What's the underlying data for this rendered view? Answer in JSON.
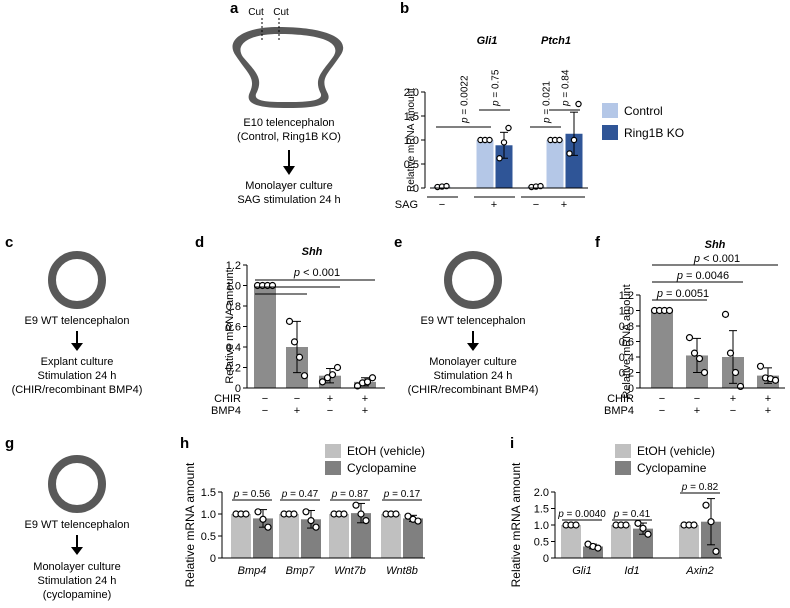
{
  "colors": {
    "control": "#b4c7e7",
    "ring1b": "#2f5597",
    "etoh": "#c0c0c0",
    "cyclo": "#808080",
    "gray": "#8c8c8c",
    "tissue": "#595959"
  },
  "panels": {
    "a": {
      "letter": "a",
      "cut1": "Cut",
      "cut2": "Cut",
      "line1": "E10 telencephalon",
      "line2": "(Control, Ring1B KO)",
      "line3": "Monolayer culture",
      "line4": "SAG stimulation 24 h"
    },
    "c": {
      "letter": "c",
      "line1": "E9 WT telencephalon",
      "line2": "Explant culture",
      "line3": "Stimulation 24 h",
      "line4": "(CHIR/recombinant BMP4)"
    },
    "e": {
      "letter": "e",
      "line1": "E9 WT telencephalon",
      "line2": "Monolayer culture",
      "line3": "Stimulation 24 h",
      "line4": "(CHIR/recombinant BMP4)"
    },
    "g": {
      "letter": "g",
      "line1": "E9 WT telencephalon",
      "line2": "Monolayer culture",
      "line3": "Stimulation 24 h",
      "line4": "(cyclopamine)"
    }
  },
  "chart_data": [
    {
      "id": "b",
      "letter": "b",
      "type": "bar",
      "ylabel": "Relative mRNA amount",
      "ylim": [
        0,
        2.0
      ],
      "yticks": [
        0,
        0.5,
        1.0,
        1.5,
        2.0
      ],
      "groups": [
        {
          "gene": "Gli1",
          "bars": [
            {
              "series": "Control",
              "sag": "−",
              "mean": 0.03,
              "sd": 0.02,
              "points": [
                0.02,
                0.03,
                0.04
              ]
            },
            {
              "series": "Control",
              "sag": "+",
              "mean": 1.0,
              "sd": 0,
              "points": [
                1.0,
                1.0,
                1.0
              ]
            },
            {
              "series": "Ring1B KO",
              "sag": "+",
              "mean": 0.89,
              "sd": 0.27,
              "points": [
                0.62,
                0.95,
                1.25
              ]
            }
          ],
          "pvalues": [
            {
              "text": "p = 0.0022"
            },
            {
              "text": "p = 0.75"
            }
          ]
        },
        {
          "gene": "Ptch1",
          "bars": [
            {
              "series": "Control",
              "sag": "−",
              "mean": 0.03,
              "sd": 0.02,
              "points": [
                0.02,
                0.03,
                0.04
              ]
            },
            {
              "series": "Control",
              "sag": "+",
              "mean": 1.0,
              "sd": 0,
              "points": [
                1.0,
                1.0,
                1.0
              ]
            },
            {
              "series": "Ring1B KO",
              "sag": "+",
              "mean": 1.13,
              "sd": 0.45,
              "points": [
                0.72,
                1.0,
                1.75
              ]
            }
          ],
          "pvalues": [
            {
              "text": "p = 0.021"
            },
            {
              "text": "p = 0.84"
            }
          ]
        }
      ],
      "legend": [
        "Control",
        "Ring1B KO"
      ],
      "row_label": "SAG",
      "row_values": [
        "−",
        "+",
        "−",
        "+"
      ]
    },
    {
      "id": "d",
      "letter": "d",
      "type": "bar",
      "title": "Shh",
      "ylabel": "Relative mRNA amount",
      "ylim": [
        0,
        1.2
      ],
      "yticks": [
        0,
        0.2,
        0.4,
        0.6,
        0.8,
        1.0,
        1.2
      ],
      "bars": [
        {
          "mean": 1.0,
          "sd": 0,
          "points": [
            1.0,
            1.0,
            1.0,
            1.0
          ]
        },
        {
          "mean": 0.4,
          "sd": 0.25,
          "points": [
            0.65,
            0.45,
            0.3,
            0.12
          ]
        },
        {
          "mean": 0.12,
          "sd": 0.07,
          "points": [
            0.06,
            0.1,
            0.13,
            0.2
          ]
        },
        {
          "mean": 0.06,
          "sd": 0.04,
          "points": [
            0.02,
            0.05,
            0.06,
            0.1
          ]
        }
      ],
      "pvalue": "p < 0.001",
      "rows": [
        {
          "label": "CHIR",
          "values": [
            "−",
            "−",
            "+",
            "+"
          ]
        },
        {
          "label": "BMP4",
          "values": [
            "−",
            "+",
            "−",
            "+"
          ]
        }
      ]
    },
    {
      "id": "f",
      "letter": "f",
      "type": "bar",
      "title": "Shh",
      "ylabel": "Relative mRNA amount",
      "ylim": [
        0,
        1.2
      ],
      "yticks": [
        0,
        0.2,
        0.4,
        0.6,
        0.8,
        1.0,
        1.2
      ],
      "bars": [
        {
          "mean": 1.0,
          "sd": 0,
          "points": [
            1.0,
            1.0,
            1.0,
            1.0
          ]
        },
        {
          "mean": 0.42,
          "sd": 0.22,
          "points": [
            0.65,
            0.45,
            0.38,
            0.2
          ]
        },
        {
          "mean": 0.4,
          "sd": 0.34,
          "points": [
            0.95,
            0.45,
            0.2,
            0.02
          ]
        },
        {
          "mean": 0.16,
          "sd": 0.1,
          "points": [
            0.28,
            0.13,
            0.12,
            0.1
          ]
        }
      ],
      "pvalues": [
        "p = 0.0051",
        "p = 0.0046",
        "p < 0.001"
      ],
      "rows": [
        {
          "label": "CHIR",
          "values": [
            "−",
            "−",
            "+",
            "+"
          ]
        },
        {
          "label": "BMP4",
          "values": [
            "−",
            "+",
            "−",
            "+"
          ]
        }
      ]
    },
    {
      "id": "h",
      "letter": "h",
      "type": "bar",
      "ylabel": "Relative mRNA amount",
      "ylim": [
        0,
        1.5
      ],
      "yticks": [
        0,
        0.5,
        1.0,
        1.5
      ],
      "legend": [
        "EtOH (vehicle)",
        "Cyclopamine"
      ],
      "groups": [
        {
          "gene": "Bmp4",
          "pvalue": "p = 0.56",
          "bars": [
            {
              "series": "EtOH (vehicle)",
              "mean": 1.0,
              "sd": 0,
              "points": [
                1.0,
                1.0,
                1.0
              ]
            },
            {
              "series": "Cyclopamine",
              "mean": 0.9,
              "sd": 0.2,
              "points": [
                1.05,
                0.88,
                0.7
              ]
            }
          ]
        },
        {
          "gene": "Bmp7",
          "pvalue": "p = 0.47",
          "bars": [
            {
              "series": "EtOH (vehicle)",
              "mean": 1.0,
              "sd": 0,
              "points": [
                1.0,
                1.0,
                1.0
              ]
            },
            {
              "series": "Cyclopamine",
              "mean": 0.88,
              "sd": 0.2,
              "points": [
                1.05,
                0.85,
                0.7
              ]
            }
          ]
        },
        {
          "gene": "Wnt7b",
          "pvalue": "p = 0.87",
          "bars": [
            {
              "series": "EtOH (vehicle)",
              "mean": 1.0,
              "sd": 0,
              "points": [
                1.0,
                1.0,
                1.0
              ]
            },
            {
              "series": "Cyclopamine",
              "mean": 1.02,
              "sd": 0.22,
              "points": [
                1.2,
                1.0,
                0.85
              ]
            }
          ]
        },
        {
          "gene": "Wnt8b",
          "pvalue": "p = 0.17",
          "bars": [
            {
              "series": "EtOH (vehicle)",
              "mean": 1.0,
              "sd": 0,
              "points": [
                1.0,
                1.0,
                1.0
              ]
            },
            {
              "series": "Cyclopamine",
              "mean": 0.9,
              "sd": 0.07,
              "points": [
                0.95,
                0.88,
                0.84
              ]
            }
          ]
        }
      ]
    },
    {
      "id": "i",
      "letter": "i",
      "type": "bar",
      "ylabel": "Relative mRNA amount",
      "ylim": [
        0,
        2.0
      ],
      "yticks": [
        0,
        0.5,
        1.0,
        1.5,
        2.0
      ],
      "legend": [
        "EtOH (vehicle)",
        "Cyclopamine"
      ],
      "groups": [
        {
          "gene": "Gli1",
          "pvalue": "p = 0.0040",
          "bars": [
            {
              "series": "EtOH (vehicle)",
              "mean": 1.0,
              "sd": 0,
              "points": [
                1.0,
                1.0,
                1.0
              ]
            },
            {
              "series": "Cyclopamine",
              "mean": 0.35,
              "sd": 0.07,
              "points": [
                0.42,
                0.35,
                0.3
              ]
            }
          ]
        },
        {
          "gene": "Id1",
          "pvalue": "p = 0.41",
          "bars": [
            {
              "series": "EtOH (vehicle)",
              "mean": 1.0,
              "sd": 0,
              "points": [
                1.0,
                1.0,
                1.0
              ]
            },
            {
              "series": "Cyclopamine",
              "mean": 0.89,
              "sd": 0.17,
              "points": [
                1.05,
                0.9,
                0.72
              ]
            }
          ]
        },
        {
          "gene": "Axin2",
          "pvalue": "p = 0.82",
          "bars": [
            {
              "series": "EtOH (vehicle)",
              "mean": 1.0,
              "sd": 0,
              "points": [
                1.0,
                1.0,
                1.0
              ]
            },
            {
              "series": "Cyclopamine",
              "mean": 1.1,
              "sd": 0.7,
              "points": [
                1.6,
                1.1,
                0.2
              ]
            }
          ]
        }
      ]
    }
  ]
}
